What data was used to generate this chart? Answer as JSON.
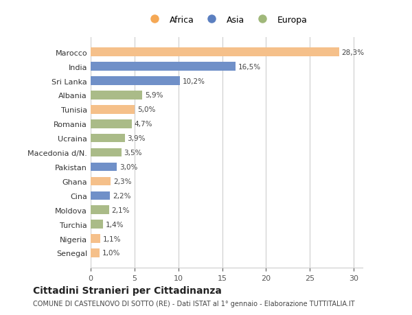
{
  "countries": [
    "Marocco",
    "India",
    "Sri Lanka",
    "Albania",
    "Tunisia",
    "Romania",
    "Ucraina",
    "Macedonia d/N.",
    "Pakistan",
    "Ghana",
    "Cina",
    "Moldova",
    "Turchia",
    "Nigeria",
    "Senegal"
  ],
  "values": [
    28.3,
    16.5,
    10.2,
    5.9,
    5.0,
    4.7,
    3.9,
    3.5,
    3.0,
    2.3,
    2.2,
    2.1,
    1.4,
    1.1,
    1.0
  ],
  "labels": [
    "28,3%",
    "16,5%",
    "10,2%",
    "5,9%",
    "5,0%",
    "4,7%",
    "3,9%",
    "3,5%",
    "3,0%",
    "2,3%",
    "2,2%",
    "2,1%",
    "1,4%",
    "1,1%",
    "1,0%"
  ],
  "continents": [
    "Africa",
    "Asia",
    "Asia",
    "Europa",
    "Africa",
    "Europa",
    "Europa",
    "Europa",
    "Asia",
    "Africa",
    "Asia",
    "Europa",
    "Europa",
    "Africa",
    "Africa"
  ],
  "bar_colors": {
    "Africa": "#F5C08A",
    "Asia": "#7090C8",
    "Europa": "#AABB88"
  },
  "legend_colors": {
    "Africa": "#F5A855",
    "Asia": "#5B7FC0",
    "Europa": "#A0B87A"
  },
  "legend_labels": [
    "Africa",
    "Asia",
    "Europa"
  ],
  "xlim": [
    0,
    31
  ],
  "xticks": [
    0,
    5,
    10,
    15,
    20,
    25,
    30
  ],
  "title": "Cittadini Stranieri per Cittadinanza",
  "subtitle": "COMUNE DI CASTELNOVO DI SOTTO (RE) - Dati ISTAT al 1° gennaio - Elaborazione TUTTITALIA.IT",
  "background_color": "#ffffff",
  "grid_color": "#cccccc",
  "bar_height": 0.6
}
